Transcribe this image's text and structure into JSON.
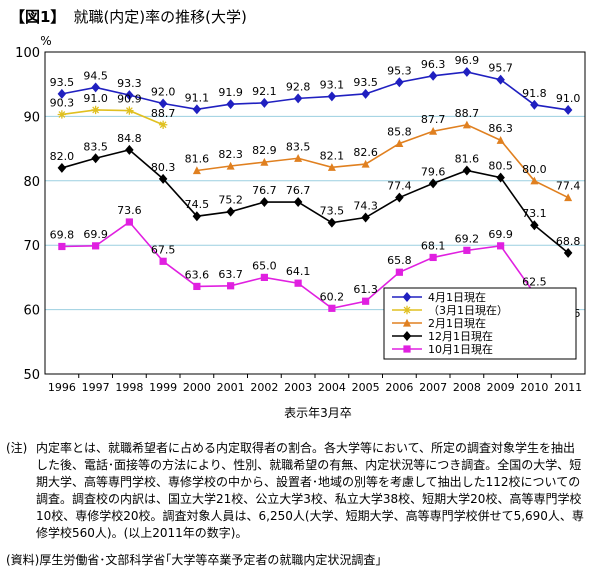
{
  "title": {
    "fig_label": "【図1】",
    "text": "就職(内定)率の推移(大学)"
  },
  "chart_data": {
    "type": "line",
    "title": "就職(内定)率の推移(大学)",
    "ylabel": "%",
    "xlabel": "表示年3月卒",
    "ylim": [
      50,
      100
    ],
    "yticks": [
      50,
      60,
      70,
      80,
      90,
      100
    ],
    "grid": true,
    "legend_position": "bottom-right",
    "categories": [
      "1996",
      "1997",
      "1998",
      "1999",
      "2000",
      "2001",
      "2002",
      "2003",
      "2004",
      "2005",
      "2006",
      "2007",
      "2008",
      "2009",
      "2010",
      "2011"
    ],
    "series": [
      {
        "name": "4月1日現在",
        "color": "#2020c0",
        "marker": "diamond",
        "values": [
          93.5,
          94.5,
          93.3,
          92.0,
          91.1,
          91.9,
          92.1,
          92.8,
          93.1,
          93.5,
          95.3,
          96.3,
          96.9,
          95.7,
          91.8,
          91.0
        ],
        "labels": [
          "93.5",
          "94.5",
          "93.3",
          "92.0",
          "91.1",
          "91.9",
          "92.1",
          "92.8",
          "93.1",
          "93.5",
          "95.3",
          "96.3",
          "96.9",
          "95.7",
          "91.8",
          "91.0"
        ]
      },
      {
        "name": "（3月1日現在）",
        "color": "#e0c020",
        "marker": "asterisk",
        "values": [
          90.3,
          91.0,
          90.9,
          88.7,
          null,
          null,
          null,
          null,
          null,
          null,
          null,
          null,
          null,
          null,
          null,
          null
        ],
        "labels": [
          "90.3",
          "91.0",
          "90.9",
          "88.7",
          null,
          null,
          null,
          null,
          null,
          null,
          null,
          null,
          null,
          null,
          null,
          null
        ]
      },
      {
        "name": "2月1日現在",
        "color": "#e08020",
        "marker": "triangle",
        "values": [
          null,
          null,
          null,
          null,
          81.6,
          82.3,
          82.9,
          83.5,
          82.1,
          82.6,
          85.8,
          87.7,
          88.7,
          86.3,
          80.0,
          77.4
        ],
        "labels": [
          null,
          null,
          null,
          null,
          "81.6",
          "82.3",
          "82.9",
          "83.5",
          "82.1",
          "82.6",
          "85.8",
          "87.7",
          "88.7",
          "86.3",
          "80.0",
          "77.4"
        ]
      },
      {
        "name": "12月1日現在",
        "color": "#000000",
        "marker": "diamond",
        "values": [
          82.0,
          83.5,
          84.8,
          80.3,
          74.5,
          75.2,
          76.7,
          76.7,
          73.5,
          74.3,
          77.4,
          79.6,
          81.6,
          80.5,
          73.1,
          68.8
        ],
        "labels": [
          "82.0",
          "83.5",
          "84.8",
          "80.3",
          "74.5",
          "75.2",
          "76.7",
          "76.7",
          "73.5",
          "74.3",
          "77.4",
          "79.6",
          "81.6",
          "80.5",
          "73.1",
          "68.8"
        ]
      },
      {
        "name": "10月1日現在",
        "color": "#e020e0",
        "marker": "square",
        "values": [
          69.8,
          69.9,
          73.6,
          67.5,
          63.6,
          63.7,
          65.0,
          64.1,
          60.2,
          61.3,
          65.8,
          68.1,
          69.2,
          69.9,
          62.5,
          57.6
        ],
        "labels": [
          "69.8",
          "69.9",
          "73.6",
          "67.5",
          "63.6",
          "63.7",
          "65.0",
          "64.1",
          "60.2",
          "61.3",
          "65.8",
          "68.1",
          "69.2",
          "69.9",
          "62.5",
          "57.6"
        ]
      }
    ]
  },
  "note": {
    "label": "(注)",
    "text": "内定率とは、就職希望者に占める内定取得者の割合。各大学等において、所定の調査対象学生を抽出した後、電話･面接等の方法により、性別、就職希望の有無、内定状況等につき調査。全国の大学、短期大学、高等専門学校、専修学校の中から、設置者･地域の別等を考慮して抽出した112校についての調査。調査校の内訳は、国立大学21校、公立大学3校、私立大学38校、短期大学20校、高等専門学校10校、専修学校20校。調査対象人員は、6,250人(大学、短期大学、高等専門学校併せて5,690人、専修学校560人)。(以上2011年の数字)。"
  },
  "source": "(資料)厚生労働省･文部科学省｢大学等卒業予定者の就職内定状況調査｣"
}
